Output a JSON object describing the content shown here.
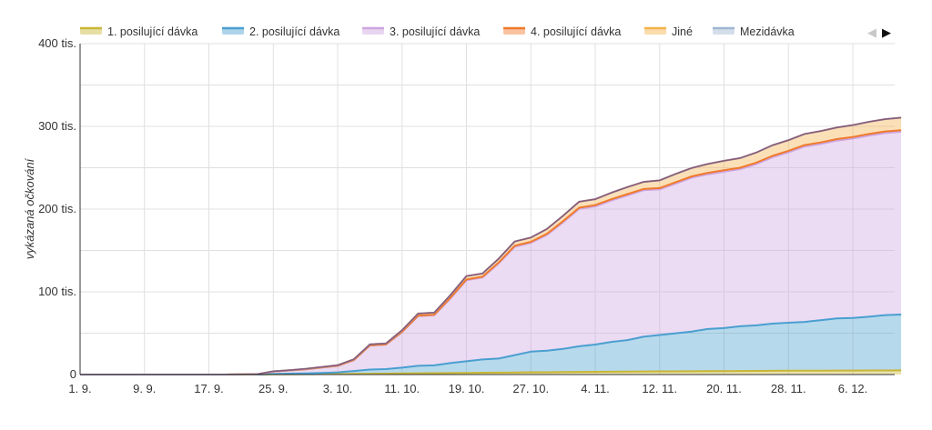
{
  "chart_data": {
    "type": "area",
    "stacked": true,
    "title": "",
    "xlabel": "",
    "ylabel": "vykázaná očkování",
    "x_ticks": [
      "1. 9.",
      "9. 9.",
      "17. 9.",
      "25. 9.",
      "3. 10.",
      "11. 10.",
      "19. 10.",
      "27. 10.",
      "4. 11.",
      "12. 11.",
      "20. 11.",
      "28. 11.",
      "6. 12."
    ],
    "y_ticks": [
      "0",
      "100 tis.",
      "200 tis.",
      "300 tis.",
      "400 tis."
    ],
    "ylim": [
      0,
      400000
    ],
    "grid": true,
    "legend_position": "top",
    "legend_nav": {
      "prev": "◀",
      "next": "▶"
    },
    "x_dates": [
      "9-01",
      "9-05",
      "9-09",
      "9-13",
      "9-17",
      "9-19",
      "9-21",
      "9-23",
      "9-25",
      "9-27",
      "9-29",
      "10-01",
      "10-03",
      "10-05",
      "10-07",
      "10-09",
      "10-11",
      "10-13",
      "10-15",
      "10-17",
      "10-19",
      "10-21",
      "10-23",
      "10-25",
      "10-27",
      "10-29",
      "10-31",
      "11-02",
      "11-04",
      "11-06",
      "11-08",
      "11-10",
      "11-12",
      "11-14",
      "11-16",
      "11-18",
      "11-20",
      "11-22",
      "11-24",
      "11-26",
      "11-28",
      "11-30",
      "12-02",
      "12-04",
      "12-06",
      "12-08",
      "12-10",
      "12-12"
    ],
    "series": [
      {
        "name": "1. posilující dávka",
        "color": "#c9b635",
        "values": [
          0,
          0,
          0,
          0,
          0,
          0,
          0,
          0,
          200,
          300,
          400,
          500,
          600,
          800,
          1000,
          1100,
          1300,
          1500,
          1600,
          1800,
          2000,
          2200,
          2300,
          2500,
          2700,
          2800,
          3000,
          3200,
          3300,
          3400,
          3600,
          3700,
          3800,
          3900,
          4000,
          4100,
          4200,
          4300,
          4400,
          4500,
          4600,
          4600,
          4700,
          4800,
          4800,
          4900,
          4900,
          5000
        ]
      },
      {
        "name": "2. posilující dávka",
        "color": "#4a9fd0",
        "values": [
          0,
          0,
          0,
          0,
          0,
          0,
          0,
          0,
          500,
          800,
          1000,
          1500,
          2000,
          3500,
          5000,
          5500,
          7000,
          9000,
          9500,
          12000,
          14000,
          16000,
          17000,
          21000,
          25000,
          26000,
          28000,
          31000,
          33000,
          36000,
          38000,
          42000,
          44000,
          46000,
          48000,
          51000,
          52000,
          54000,
          55000,
          57000,
          58000,
          59000,
          61000,
          63000,
          63500,
          65000,
          67000,
          67500
        ]
      },
      {
        "name": "3. posilující dávka",
        "color": "#cda5e0",
        "values": [
          0,
          0,
          0,
          0,
          0,
          0,
          200,
          400,
          3000,
          3800,
          5000,
          6500,
          8000,
          13000,
          29000,
          29500,
          43000,
          60000,
          60500,
          78000,
          98000,
          99000,
          115000,
          131000,
          131500,
          140000,
          153000,
          166000,
          167000,
          171000,
          175000,
          177000,
          176000,
          181000,
          186000,
          187000,
          189000,
          190000,
          195000,
          201000,
          206000,
          212000,
          213000,
          215000,
          217000,
          219000,
          220000,
          221000
        ]
      },
      {
        "name": "4. posilující dávka",
        "color": "#f07a2c",
        "values": [
          0,
          0,
          0,
          0,
          0,
          0,
          0,
          0,
          0,
          0,
          0,
          0,
          0,
          200,
          300,
          300,
          500,
          700,
          700,
          900,
          1000,
          1000,
          1100,
          1200,
          1200,
          1300,
          1400,
          1500,
          1500,
          1500,
          1500,
          1600,
          1600,
          1600,
          1600,
          1700,
          1700,
          1700,
          1700,
          1800,
          1800,
          1800,
          1800,
          1800,
          1800,
          1900,
          1900,
          1900
        ]
      },
      {
        "name": "Jiné",
        "color": "#f5b24a",
        "values": [
          0,
          0,
          0,
          0,
          0,
          0,
          0,
          0,
          300,
          400,
          500,
          600,
          700,
          1000,
          1200,
          1200,
          1800,
          2500,
          2500,
          3200,
          4000,
          4000,
          4600,
          5200,
          5200,
          5800,
          6500,
          7200,
          7200,
          7900,
          8500,
          8600,
          9300,
          10000,
          10100,
          10800,
          11500,
          11600,
          12200,
          12800,
          12900,
          13400,
          13800,
          14000,
          14400,
          14700,
          14900,
          15100
        ]
      },
      {
        "name": "Mezidávka",
        "color": "#9fb5d3",
        "values": [
          0,
          0,
          0,
          0,
          0,
          0,
          0,
          0,
          0,
          0,
          0,
          0,
          0,
          0,
          0,
          0,
          0,
          0,
          0,
          0,
          0,
          0,
          0,
          0,
          0,
          0,
          0,
          0,
          0,
          0,
          0,
          0,
          0,
          0,
          0,
          0,
          0,
          0,
          0,
          0,
          0,
          0,
          0,
          0,
          0,
          0,
          0,
          0
        ]
      }
    ]
  }
}
